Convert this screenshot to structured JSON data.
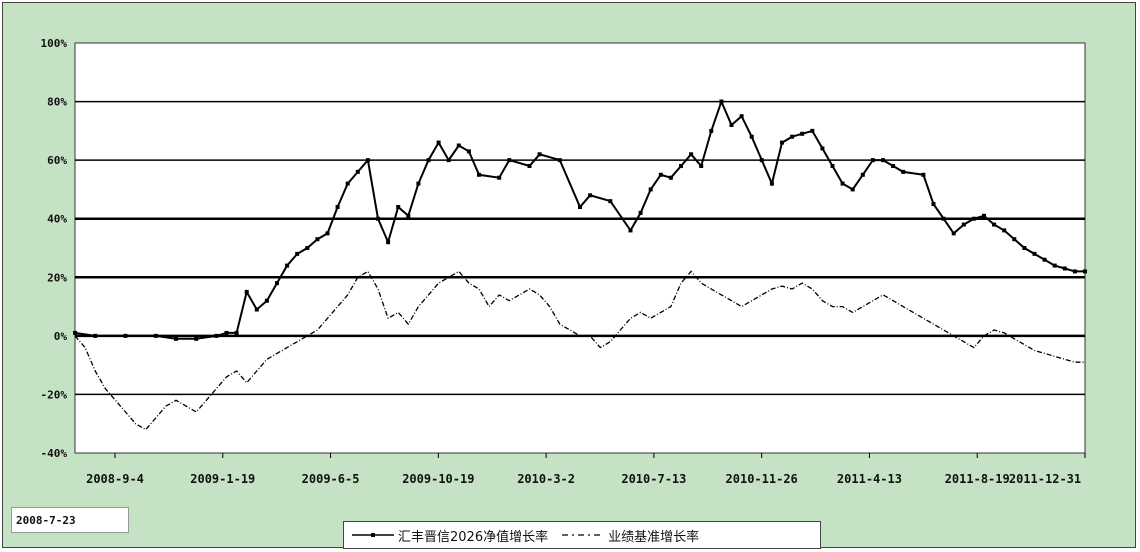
{
  "chart_data": {
    "type": "line",
    "title": "",
    "xlabel": "",
    "ylabel": "",
    "ylim": [
      -40,
      100
    ],
    "yticks": [
      "100%",
      "80%",
      "60%",
      "40%",
      "20%",
      "0%",
      "-20%",
      "-40%"
    ],
    "yticks_values": [
      100,
      80,
      60,
      40,
      20,
      0,
      -20,
      -40
    ],
    "xticks": [
      "2008-9-4",
      "2009-1-19",
      "2009-6-5",
      "2009-10-19",
      "2010-3-2",
      "2010-7-13",
      "2010-11-26",
      "2011-4-13",
      "2011-8-19",
      "2011-12-31"
    ],
    "start_label": "2008-7-23",
    "grid": "horizontal",
    "legend_position": "bottom",
    "series": [
      {
        "name": "汇丰晋信2026净值增长率",
        "color": "#000000",
        "style": "solid-marker",
        "x": [
          0,
          0.02,
          0.05,
          0.08,
          0.1,
          0.12,
          0.14,
          0.15,
          0.16,
          0.17,
          0.18,
          0.19,
          0.2,
          0.21,
          0.22,
          0.23,
          0.24,
          0.25,
          0.26,
          0.27,
          0.28,
          0.29,
          0.3,
          0.31,
          0.32,
          0.33,
          0.34,
          0.35,
          0.36,
          0.37,
          0.38,
          0.39,
          0.4,
          0.42,
          0.43,
          0.45,
          0.46,
          0.48,
          0.5,
          0.51,
          0.53,
          0.55,
          0.56,
          0.57,
          0.58,
          0.59,
          0.6,
          0.61,
          0.62,
          0.63,
          0.64,
          0.65,
          0.66,
          0.67,
          0.68,
          0.69,
          0.7,
          0.71,
          0.72,
          0.73,
          0.74,
          0.75,
          0.76,
          0.77,
          0.78,
          0.79,
          0.8,
          0.81,
          0.82,
          0.84,
          0.85,
          0.86,
          0.87,
          0.88,
          0.89,
          0.9,
          0.91,
          0.92,
          0.93,
          0.94,
          0.95,
          0.96,
          0.97,
          0.98,
          0.99,
          1.0
        ],
        "values": [
          1,
          0,
          0,
          0,
          -1,
          -1,
          0,
          1,
          1,
          15,
          9,
          12,
          18,
          24,
          28,
          30,
          33,
          35,
          44,
          52,
          56,
          60,
          40,
          32,
          44,
          41,
          52,
          60,
          66,
          60,
          65,
          63,
          55,
          54,
          60,
          58,
          62,
          60,
          44,
          48,
          46,
          36,
          42,
          50,
          55,
          54,
          58,
          62,
          58,
          70,
          80,
          72,
          75,
          68,
          60,
          52,
          66,
          68,
          69,
          70,
          64,
          58,
          52,
          50,
          55,
          60,
          60,
          58,
          56,
          55,
          45,
          40,
          35,
          38,
          40,
          41,
          38,
          36,
          33,
          30,
          28,
          26,
          24,
          23,
          22,
          22
        ],
        "note_values_are_percent": true
      },
      {
        "name": "业绩基准增长率",
        "color": "#000000",
        "style": "dash-dot",
        "x": [
          0,
          0.01,
          0.02,
          0.03,
          0.04,
          0.05,
          0.06,
          0.07,
          0.08,
          0.09,
          0.1,
          0.11,
          0.12,
          0.13,
          0.14,
          0.15,
          0.16,
          0.17,
          0.18,
          0.19,
          0.2,
          0.21,
          0.22,
          0.23,
          0.24,
          0.25,
          0.26,
          0.27,
          0.28,
          0.29,
          0.3,
          0.31,
          0.32,
          0.33,
          0.34,
          0.35,
          0.36,
          0.37,
          0.38,
          0.39,
          0.4,
          0.41,
          0.42,
          0.43,
          0.44,
          0.45,
          0.46,
          0.47,
          0.48,
          0.49,
          0.5,
          0.51,
          0.52,
          0.53,
          0.54,
          0.55,
          0.56,
          0.57,
          0.58,
          0.59,
          0.6,
          0.61,
          0.62,
          0.63,
          0.64,
          0.65,
          0.66,
          0.67,
          0.68,
          0.69,
          0.7,
          0.71,
          0.72,
          0.73,
          0.74,
          0.75,
          0.76,
          0.77,
          0.78,
          0.79,
          0.8,
          0.81,
          0.82,
          0.83,
          0.84,
          0.85,
          0.86,
          0.87,
          0.88,
          0.89,
          0.9,
          0.91,
          0.92,
          0.93,
          0.94,
          0.95,
          0.96,
          0.97,
          0.98,
          0.99,
          1.0
        ],
        "values": [
          0,
          -4,
          -12,
          -18,
          -22,
          -26,
          -30,
          -32,
          -28,
          -24,
          -22,
          -24,
          -26,
          -22,
          -18,
          -14,
          -12,
          -16,
          -12,
          -8,
          -6,
          -4,
          -2,
          0,
          2,
          6,
          10,
          14,
          20,
          22,
          16,
          6,
          8,
          4,
          10,
          14,
          18,
          20,
          22,
          18,
          16,
          10,
          14,
          12,
          14,
          16,
          14,
          10,
          4,
          2,
          0,
          0,
          -4,
          -2,
          2,
          6,
          8,
          6,
          8,
          10,
          18,
          22,
          18,
          16,
          14,
          12,
          10,
          12,
          14,
          16,
          17,
          16,
          18,
          16,
          12,
          10,
          10,
          8,
          10,
          12,
          14,
          12,
          10,
          8,
          6,
          4,
          2,
          0,
          -2,
          -4,
          0,
          2,
          1,
          -1,
          -3,
          -5,
          -6,
          -7,
          -8,
          -9,
          -9
        ],
        "note_values_are_percent": true
      }
    ]
  }
}
